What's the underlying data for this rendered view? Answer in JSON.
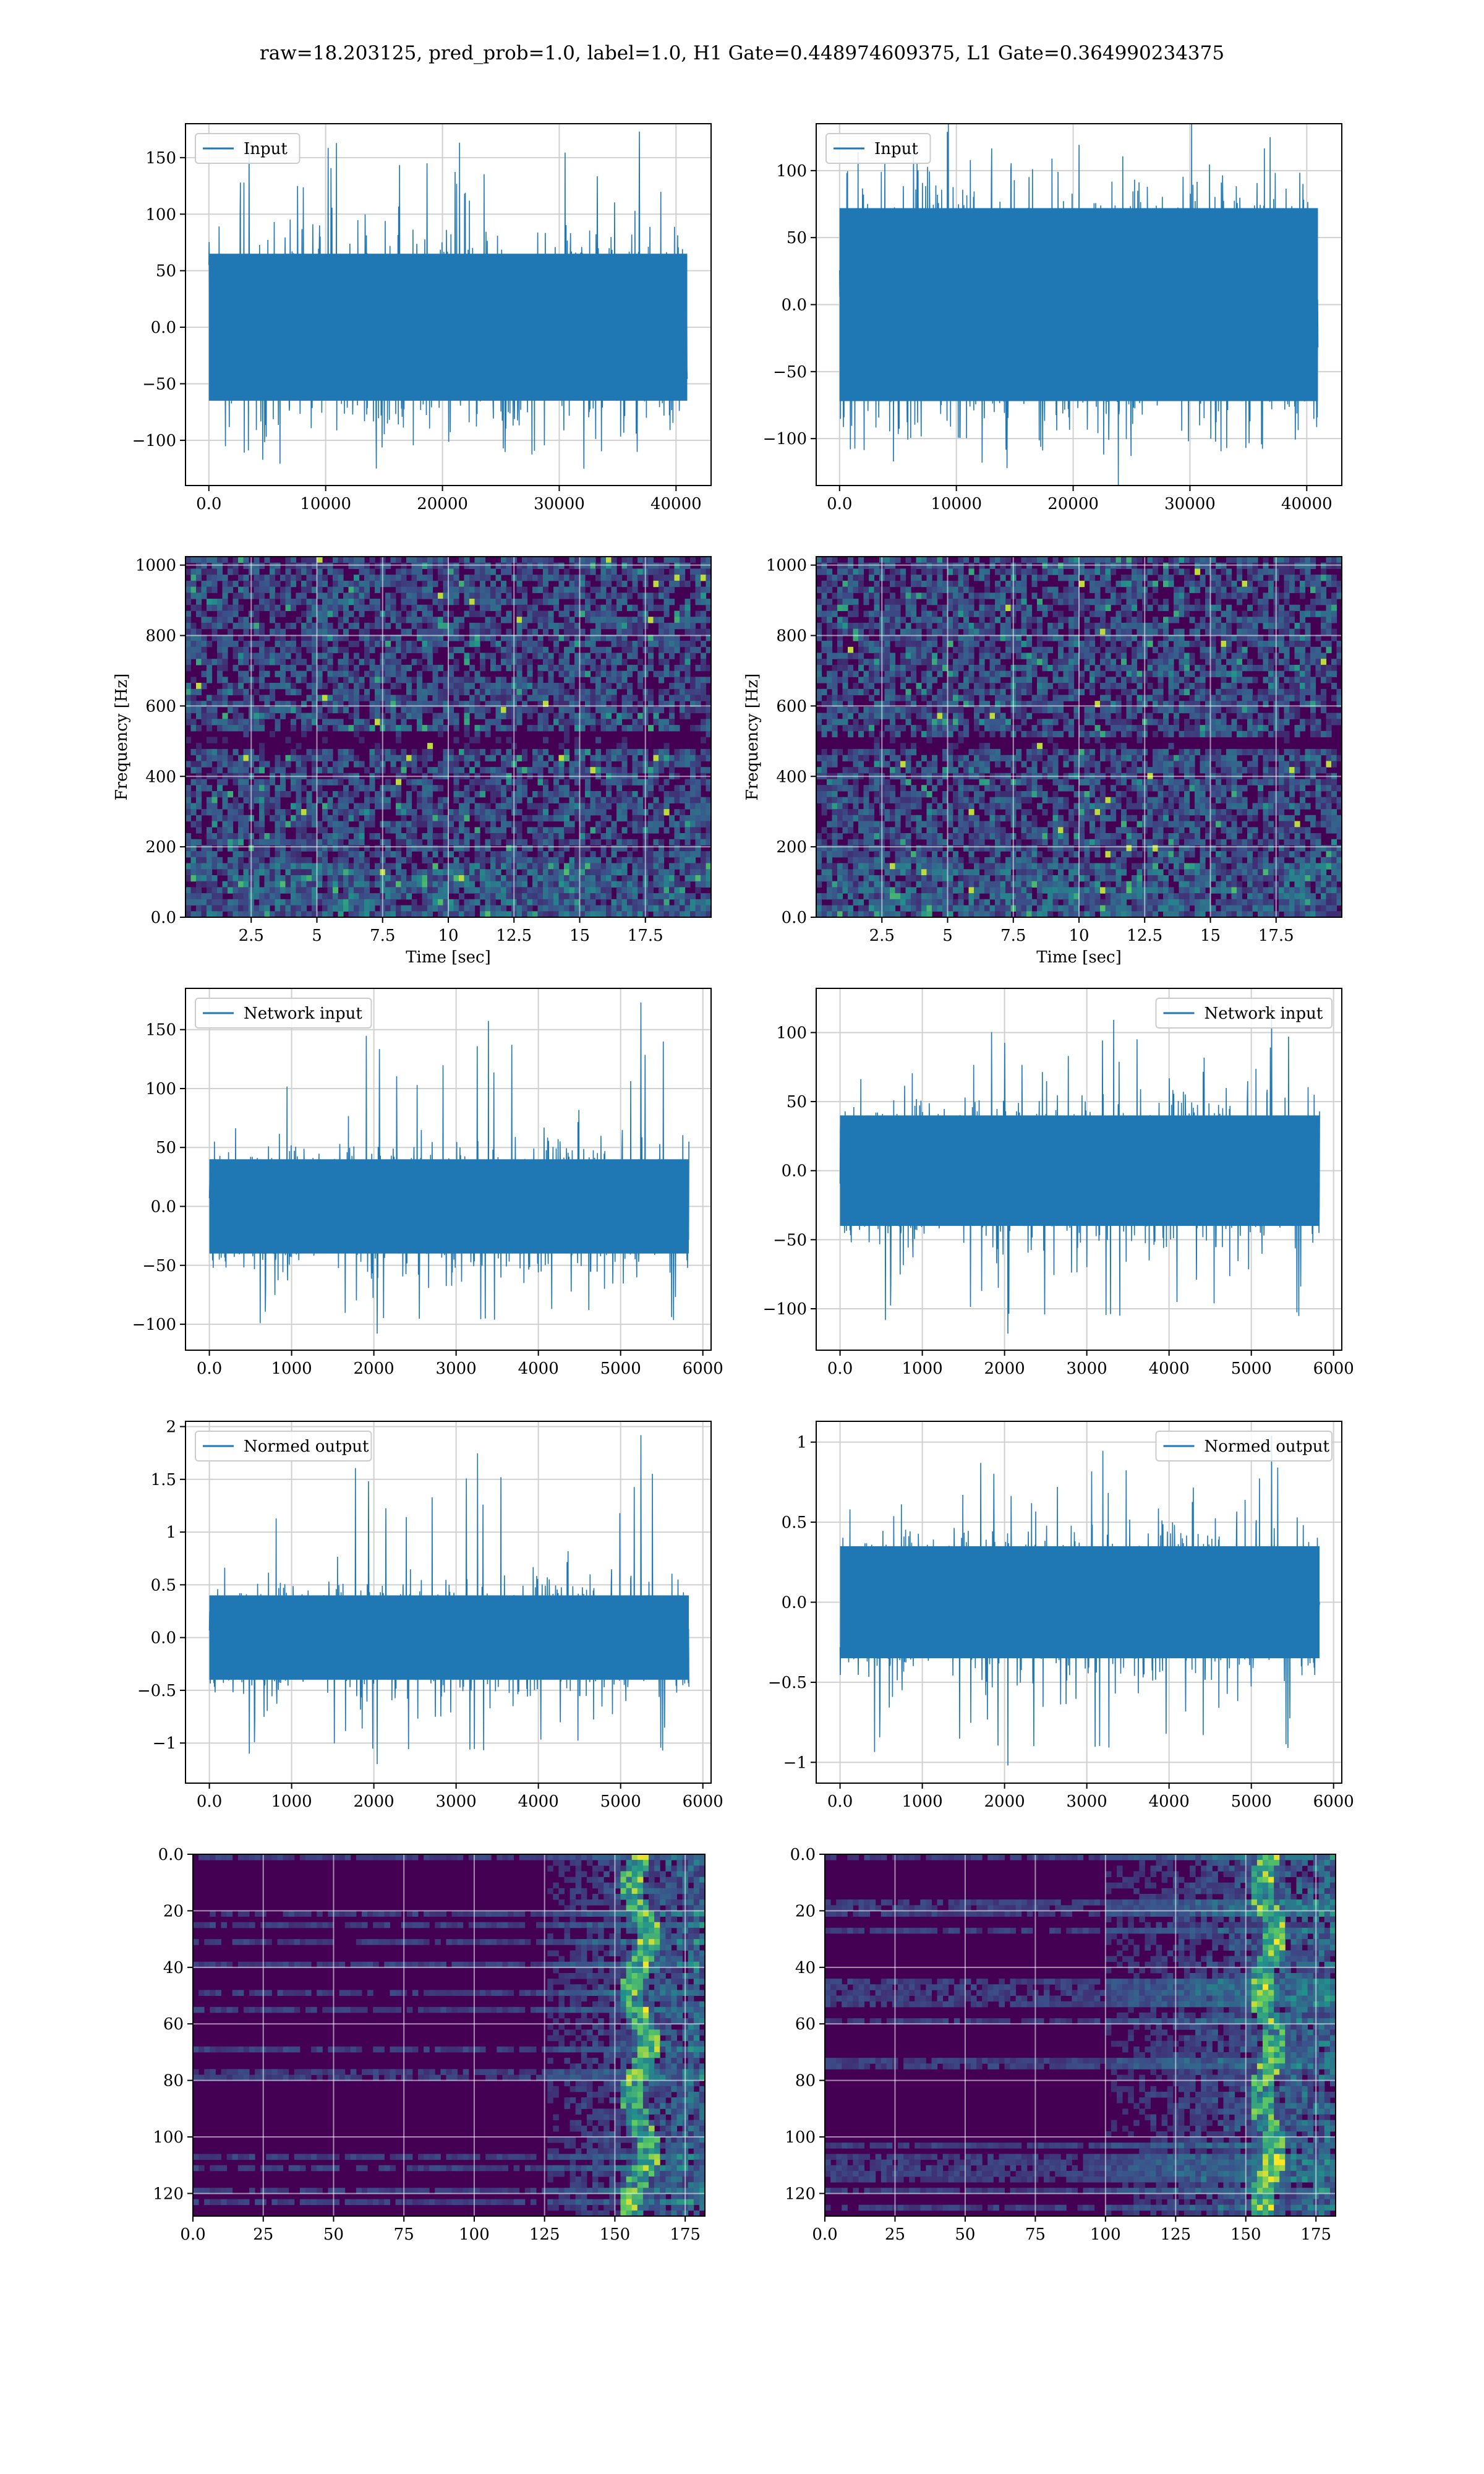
{
  "figure": {
    "title": "raw=18.203125, pred_prob=1.0, label=1.0, H1 Gate=0.448974609375, L1 Gate=0.364990234375"
  },
  "colors": {
    "line": "#1f77b4",
    "grid": "#d0d0d0",
    "viridis_low": "#440154",
    "viridis_mid": "#21918c",
    "viridis_high": "#fde725"
  },
  "chart_data": [
    {
      "id": "h1-input",
      "type": "line",
      "title": "",
      "xlabel": "",
      "ylabel": "",
      "legend": "top-left",
      "grid": true,
      "xlim": [
        -2000,
        43000
      ],
      "ylim": [
        -140,
        180
      ],
      "xticks": [
        0,
        10000,
        20000,
        30000,
        40000
      ],
      "yticks": [
        -100,
        -50,
        0,
        50,
        100,
        150
      ],
      "series": [
        {
          "name": "Input",
          "x_range": [
            0,
            40960
          ],
          "envelope_pos": 65,
          "envelope_neg": -65,
          "peak_max": 173,
          "peak_min": -125
        }
      ]
    },
    {
      "id": "l1-input",
      "type": "line",
      "title": "",
      "xlabel": "",
      "ylabel": "",
      "legend": "top-left",
      "grid": true,
      "xlim": [
        -2000,
        43000
      ],
      "ylim": [
        -135,
        135
      ],
      "xticks": [
        0,
        10000,
        20000,
        30000,
        40000
      ],
      "yticks": [
        -100,
        -50,
        0,
        50,
        100
      ],
      "series": [
        {
          "name": "Input",
          "x_range": [
            0,
            40960
          ],
          "envelope_pos": 72,
          "envelope_neg": -72,
          "peak_max": 125,
          "peak_min": -122
        }
      ]
    },
    {
      "id": "h1-spectrogram",
      "type": "heatmap",
      "title": "",
      "xlabel": "Time [sec]",
      "ylabel": "Frequency [Hz]",
      "grid": true,
      "xlim": [
        0,
        20
      ],
      "ylim": [
        0,
        1024
      ],
      "xticks": [
        2.5,
        5.0,
        7.5,
        10.0,
        12.5,
        15.0,
        17.5
      ],
      "yticks": [
        0,
        200,
        400,
        600,
        800,
        1000
      ],
      "colormap": "viridis",
      "dark_band_hz": [
        470,
        530
      ]
    },
    {
      "id": "l1-spectrogram",
      "type": "heatmap",
      "title": "",
      "xlabel": "Time [sec]",
      "ylabel": "Frequency [Hz]",
      "grid": true,
      "xlim": [
        0,
        20
      ],
      "ylim": [
        0,
        1024
      ],
      "xticks": [
        2.5,
        5.0,
        7.5,
        10.0,
        12.5,
        15.0,
        17.5
      ],
      "yticks": [
        0,
        200,
        400,
        600,
        800,
        1000
      ],
      "colormap": "viridis",
      "dark_band_hz": [
        480,
        520
      ]
    },
    {
      "id": "h1-network-input",
      "type": "line",
      "title": "",
      "xlabel": "",
      "ylabel": "",
      "legend": "top-left",
      "grid": true,
      "xlim": [
        -290,
        6100
      ],
      "ylim": [
        -122,
        185
      ],
      "xticks": [
        0,
        1000,
        2000,
        3000,
        4000,
        5000,
        6000
      ],
      "yticks": [
        -100,
        -50,
        0,
        50,
        100,
        150
      ],
      "series": [
        {
          "name": "Network input",
          "x_range": [
            0,
            5830
          ],
          "envelope_pos": 40,
          "envelope_neg": -40,
          "peak_max": 173,
          "peak_min": -108
        }
      ]
    },
    {
      "id": "l1-network-input",
      "type": "line",
      "title": "",
      "xlabel": "",
      "ylabel": "",
      "legend": "top-right",
      "grid": true,
      "xlim": [
        -290,
        6100
      ],
      "ylim": [
        -130,
        132
      ],
      "xticks": [
        0,
        1000,
        2000,
        3000,
        4000,
        5000,
        6000
      ],
      "yticks": [
        -100,
        -50,
        0,
        50,
        100
      ],
      "series": [
        {
          "name": "Network input",
          "x_range": [
            0,
            5830
          ],
          "envelope_pos": 40,
          "envelope_neg": -40,
          "peak_max": 120,
          "peak_min": -118
        }
      ]
    },
    {
      "id": "h1-normed-output",
      "type": "line",
      "title": "",
      "xlabel": "",
      "ylabel": "",
      "legend": "top-left",
      "grid": true,
      "xlim": [
        -290,
        6100
      ],
      "ylim": [
        -1.38,
        2.05
      ],
      "xticks": [
        0,
        1000,
        2000,
        3000,
        4000,
        5000,
        6000
      ],
      "yticks": [
        -1.0,
        -0.5,
        0.0,
        0.5,
        1.0,
        1.5,
        2.0
      ],
      "series": [
        {
          "name": "Normed output",
          "x_range": [
            0,
            5830
          ],
          "envelope_pos": 0.4,
          "envelope_neg": -0.4,
          "peak_max": 1.92,
          "peak_min": -1.2
        }
      ]
    },
    {
      "id": "l1-normed-output",
      "type": "line",
      "title": "",
      "xlabel": "",
      "ylabel": "",
      "legend": "top-right",
      "grid": true,
      "xlim": [
        -290,
        6100
      ],
      "ylim": [
        -1.13,
        1.13
      ],
      "xticks": [
        0,
        1000,
        2000,
        3000,
        4000,
        5000,
        6000
      ],
      "yticks": [
        -1.0,
        -0.5,
        0.0,
        0.5,
        1.0
      ],
      "series": [
        {
          "name": "Normed output",
          "x_range": [
            0,
            5830
          ],
          "envelope_pos": 0.35,
          "envelope_neg": -0.35,
          "peak_max": 1.04,
          "peak_min": -1.02
        }
      ]
    },
    {
      "id": "h1-feature-map",
      "type": "heatmap",
      "title": "",
      "xlabel": "",
      "ylabel": "",
      "grid": true,
      "xlim": [
        0,
        182
      ],
      "ylim": [
        128,
        0
      ],
      "xticks": [
        0,
        25,
        50,
        75,
        100,
        125,
        150,
        175
      ],
      "yticks": [
        0,
        20,
        40,
        60,
        80,
        100,
        120
      ],
      "colormap": "viridis",
      "active_columns": [
        125,
        182
      ],
      "hot_column": 158
    },
    {
      "id": "l1-feature-map",
      "type": "heatmap",
      "title": "",
      "xlabel": "",
      "ylabel": "",
      "grid": true,
      "xlim": [
        0,
        182
      ],
      "ylim": [
        128,
        0
      ],
      "xticks": [
        0,
        25,
        50,
        75,
        100,
        125,
        150,
        175
      ],
      "yticks": [
        0,
        20,
        40,
        60,
        80,
        100,
        120
      ],
      "colormap": "viridis",
      "active_columns": [
        100,
        182
      ],
      "hot_column": 157
    }
  ]
}
